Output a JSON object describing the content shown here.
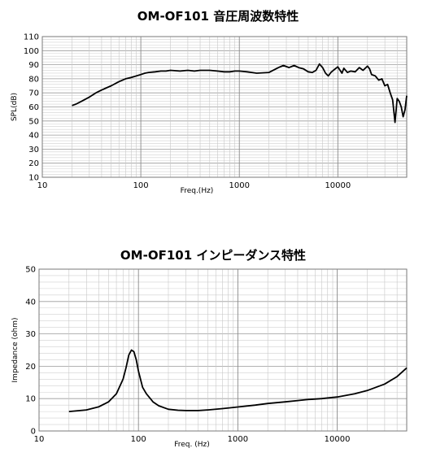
{
  "chart_data": [
    {
      "type": "line",
      "title": "OM-OF101 音圧周波数特性",
      "xlabel": "Freq.(Hz)",
      "ylabel": "SPL(dB)",
      "xscale": "log",
      "xlim": [
        10,
        50000
      ],
      "ylim": [
        10,
        110
      ],
      "xticks": [
        "10",
        "100",
        "1000",
        "10000"
      ],
      "yticks": [
        "10",
        "20",
        "30",
        "40",
        "50",
        "60",
        "70",
        "80",
        "90",
        "100",
        "110"
      ],
      "grid": true,
      "series": [
        {
          "color": "#000000",
          "x": [
            20,
            22,
            25,
            30,
            35,
            40,
            50,
            60,
            70,
            80,
            90,
            100,
            110,
            120,
            140,
            160,
            180,
            200,
            250,
            300,
            350,
            400,
            500,
            600,
            700,
            800,
            900,
            1000,
            1200,
            1500,
            2000,
            2500,
            2800,
            3200,
            3600,
            4000,
            4500,
            5000,
            5500,
            6000,
            6500,
            7000,
            7500,
            8000,
            8500,
            9000,
            10000,
            11000,
            11500,
            12500,
            13500,
            15000,
            16500,
            18000,
            20000,
            21000,
            22000,
            24000,
            26000,
            28000,
            30000,
            32000,
            34000,
            36000,
            38000,
            40000,
            42000,
            44000,
            46000,
            48000,
            50000
          ],
          "values": [
            61,
            62,
            64,
            67,
            70,
            72,
            75,
            78,
            80,
            81,
            82,
            83,
            84,
            84.5,
            85,
            85.5,
            85.5,
            86,
            85.5,
            86,
            85.5,
            86,
            86,
            85.5,
            85,
            85,
            85.5,
            85.5,
            85,
            84,
            84.5,
            88,
            89.5,
            88,
            89.5,
            88,
            87,
            85,
            84.5,
            86,
            90.5,
            88,
            84,
            82,
            84.5,
            86,
            88.5,
            84,
            87.5,
            84.5,
            85.5,
            85,
            88,
            86,
            89,
            87,
            83,
            82,
            79,
            80,
            75,
            76,
            70,
            65,
            49,
            66,
            64,
            60,
            53,
            58,
            68
          ]
        }
      ]
    },
    {
      "type": "line",
      "title": "OM-OF101 インピーダンス特性",
      "xlabel": "Freq. (Hz)",
      "ylabel": "Impedance (ohm)",
      "xscale": "log",
      "xlim": [
        10,
        50000
      ],
      "ylim": [
        0,
        50
      ],
      "xticks": [
        "10",
        "100",
        "1000",
        "10000"
      ],
      "yticks": [
        "0",
        "10",
        "20",
        "30",
        "40",
        "50"
      ],
      "grid": true,
      "series": [
        {
          "color": "#000000",
          "x": [
            20,
            30,
            40,
            50,
            60,
            70,
            75,
            80,
            85,
            90,
            95,
            100,
            110,
            120,
            140,
            160,
            200,
            250,
            300,
            400,
            500,
            700,
            1000,
            1500,
            2000,
            3000,
            4000,
            5000,
            7000,
            10000,
            15000,
            20000,
            30000,
            40000,
            50000
          ],
          "values": [
            6,
            6.5,
            7.5,
            9,
            11.5,
            16,
            19.5,
            23.5,
            25,
            24.5,
            22,
            18.5,
            13.5,
            11.5,
            9,
            7.8,
            6.7,
            6.4,
            6.3,
            6.3,
            6.5,
            6.9,
            7.4,
            8,
            8.5,
            9,
            9.4,
            9.7,
            10,
            10.5,
            11.5,
            12.5,
            14.5,
            16.8,
            19.5
          ]
        }
      ]
    }
  ]
}
